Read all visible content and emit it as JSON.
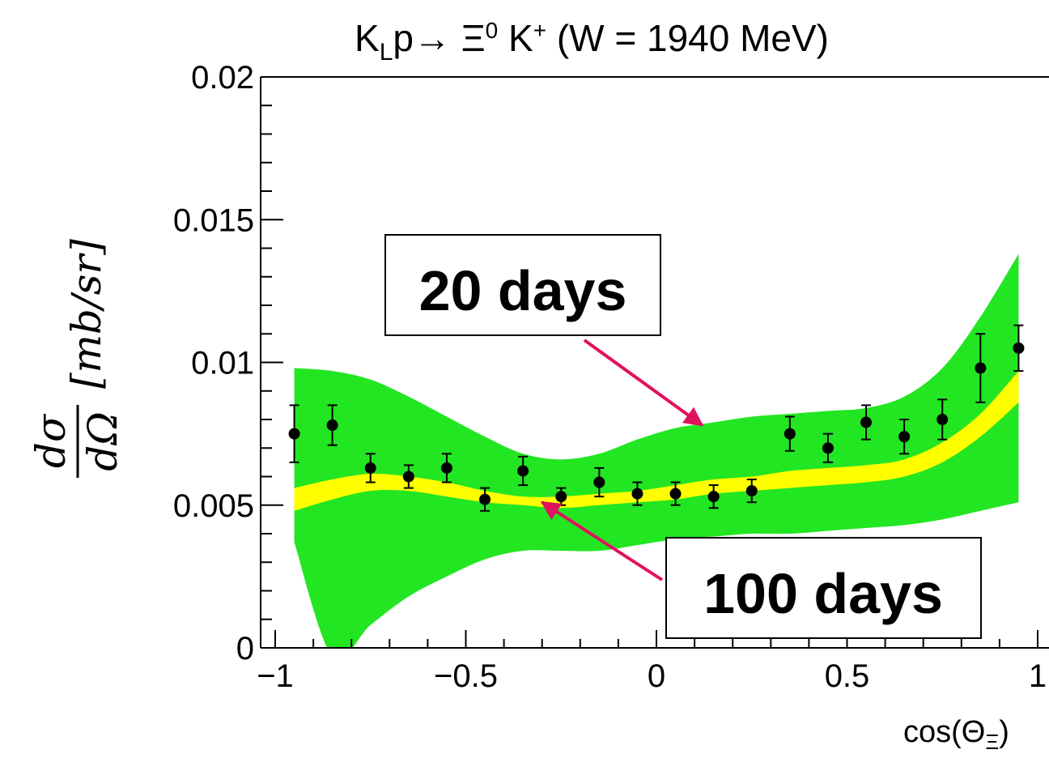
{
  "chart_data": {
    "type": "scatter",
    "title": {
      "k": "K",
      "k_sub": "L",
      "p_arrow": "p→ Ξ",
      "xi_sup": "0",
      "kplus": " K",
      "kplus_sup": "+",
      "w": "  (W = 1940 MeV)"
    },
    "xlabel": {
      "main": "cos(Θ",
      "sub": "Ξ",
      "close": ")"
    },
    "ylabel": {
      "num": "dσ",
      "den": "dΩ",
      "unit": "[mb/sr]"
    },
    "xlim": [
      -1,
      1
    ],
    "ylim": [
      0,
      0.02
    ],
    "xticks": [
      -1,
      -0.5,
      0,
      0.5,
      1
    ],
    "xtick_labels": [
      "−1",
      "−0.5",
      "0",
      "0.5",
      "1"
    ],
    "yticks": [
      0,
      0.005,
      0.01,
      0.015,
      0.02
    ],
    "ytick_labels": [
      "0",
      "0.005",
      "0.01",
      "0.015",
      "0.02"
    ],
    "series": [
      {
        "x": [
          -0.95,
          -0.85,
          -0.75,
          -0.65,
          -0.55,
          -0.45,
          -0.35,
          -0.25,
          -0.15,
          -0.05,
          0.05,
          0.15,
          0.25,
          0.35,
          0.45,
          0.55,
          0.65,
          0.75,
          0.85,
          0.95
        ],
        "y": [
          0.0075,
          0.0078,
          0.0063,
          0.006,
          0.0063,
          0.0052,
          0.0062,
          0.0053,
          0.0058,
          0.0054,
          0.0054,
          0.0053,
          0.0055,
          0.0075,
          0.007,
          0.0079,
          0.0074,
          0.008,
          0.0098,
          0.0105
        ],
        "yerr": [
          0.001,
          0.0007,
          0.0005,
          0.0004,
          0.0005,
          0.0004,
          0.0005,
          0.0003,
          0.0005,
          0.0004,
          0.0004,
          0.0004,
          0.0004,
          0.0006,
          0.0005,
          0.0006,
          0.0006,
          0.0007,
          0.0012,
          0.0008
        ]
      }
    ],
    "bands": [
      {
        "color": "#22e622",
        "x": [
          -0.95,
          -0.85,
          -0.75,
          -0.65,
          -0.55,
          -0.45,
          -0.35,
          -0.25,
          -0.15,
          -0.05,
          0.05,
          0.15,
          0.25,
          0.35,
          0.45,
          0.55,
          0.65,
          0.75,
          0.85,
          0.95
        ],
        "upper": [
          0.0098,
          0.0097,
          0.0094,
          0.0088,
          0.0081,
          0.0074,
          0.0068,
          0.0066,
          0.0068,
          0.0073,
          0.0077,
          0.0079,
          0.0081,
          0.0082,
          0.0083,
          0.0084,
          0.0088,
          0.0098,
          0.0116,
          0.0138
        ],
        "lower": [
          0.0037,
          -0.0003,
          0.0008,
          0.0018,
          0.0025,
          0.0031,
          0.0034,
          0.0034,
          0.0034,
          0.0036,
          0.0038,
          0.0039,
          0.004,
          0.004,
          0.0041,
          0.0042,
          0.0043,
          0.0045,
          0.0048,
          0.0051
        ]
      },
      {
        "color": "#ffff00",
        "x": [
          -0.95,
          -0.85,
          -0.75,
          -0.65,
          -0.55,
          -0.45,
          -0.35,
          -0.25,
          -0.15,
          -0.05,
          0.05,
          0.15,
          0.25,
          0.35,
          0.45,
          0.55,
          0.65,
          0.75,
          0.85,
          0.95
        ],
        "upper": [
          0.0056,
          0.0059,
          0.0061,
          0.006,
          0.0058,
          0.0055,
          0.0053,
          0.0053,
          0.0054,
          0.0055,
          0.0057,
          0.0059,
          0.006,
          0.0062,
          0.0063,
          0.0064,
          0.0066,
          0.0072,
          0.0082,
          0.0097
        ],
        "lower": [
          0.0048,
          0.0052,
          0.0055,
          0.0055,
          0.0053,
          0.0051,
          0.005,
          0.0049,
          0.005,
          0.0051,
          0.0052,
          0.0054,
          0.0055,
          0.0056,
          0.0057,
          0.0058,
          0.006,
          0.0065,
          0.0074,
          0.0086
        ]
      }
    ],
    "annotations": [
      {
        "text": "20 days",
        "arrow_to": [
          0.12,
          0.0078
        ]
      },
      {
        "text": "100 days",
        "arrow_to": [
          -0.3,
          0.0051
        ]
      }
    ],
    "arrow_color": "#e0115f"
  }
}
